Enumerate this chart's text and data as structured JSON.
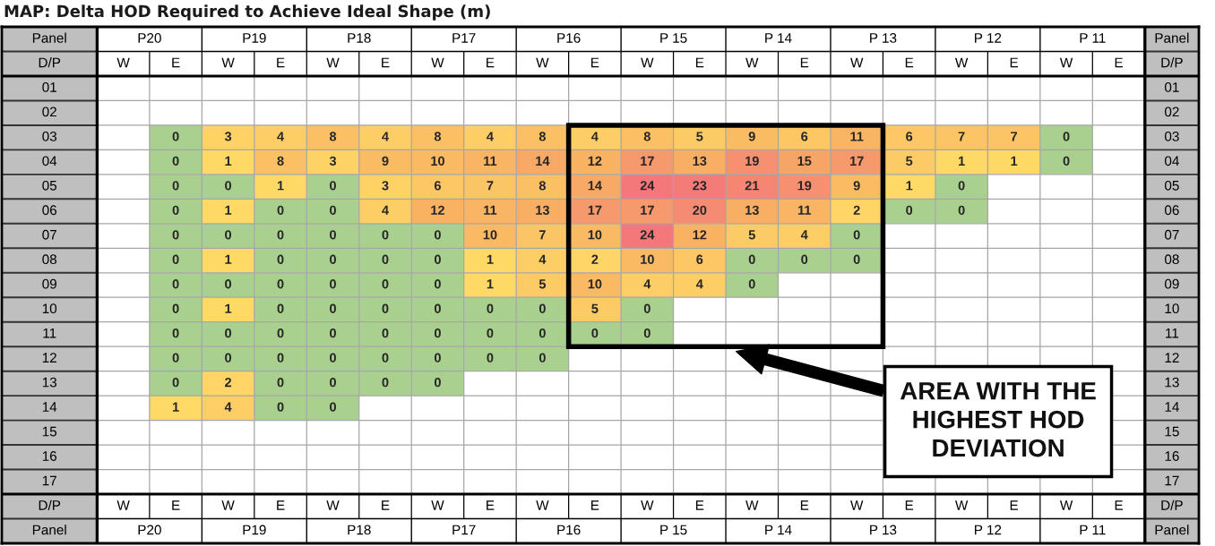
{
  "chart_data": {
    "type": "heatmap",
    "title": "MAP: Delta HOD Required to Achieve Ideal Shape (m)",
    "categories": [
      "W",
      "E",
      "W",
      "E",
      "W",
      "E",
      "W",
      "E",
      "W",
      "E",
      "W",
      "E",
      "W",
      "E",
      "W",
      "E",
      "W",
      "E",
      "W",
      "E"
    ],
    "y_categories": [
      "01",
      "02",
      "03",
      "04",
      "05",
      "06",
      "07",
      "08",
      "09",
      "10",
      "11",
      "12",
      "13",
      "14",
      "15",
      "16",
      "17"
    ],
    "y2_categories": [
      "01",
      "02",
      "03",
      "04",
      "05",
      "06",
      "07",
      "08",
      "09",
      "10",
      "11",
      "12",
      "13",
      "14",
      "15",
      "16",
      "17"
    ],
    "cells": [
      [
        null,
        null,
        null,
        null,
        null,
        null,
        null,
        null,
        null,
        null,
        null,
        null,
        null,
        null,
        null,
        null,
        null,
        null,
        null,
        null
      ],
      [
        null,
        null,
        null,
        null,
        null,
        null,
        null,
        null,
        null,
        null,
        null,
        null,
        null,
        null,
        null,
        null,
        null,
        null,
        null,
        null
      ],
      [
        null,
        0,
        3,
        4,
        8,
        4,
        8,
        4,
        8,
        4,
        8,
        5,
        9,
        6,
        11,
        6,
        7,
        7,
        0,
        null
      ],
      [
        null,
        0,
        1,
        8,
        3,
        9,
        10,
        11,
        14,
        12,
        17,
        13,
        19,
        15,
        17,
        5,
        1,
        1,
        0,
        null
      ],
      [
        null,
        0,
        0,
        1,
        0,
        3,
        6,
        7,
        8,
        14,
        24,
        23,
        21,
        19,
        9,
        1,
        0,
        null,
        null,
        null
      ],
      [
        null,
        0,
        1,
        0,
        0,
        4,
        12,
        11,
        13,
        17,
        17,
        20,
        13,
        11,
        2,
        0,
        0,
        null,
        null,
        null
      ],
      [
        null,
        0,
        0,
        0,
        0,
        0,
        0,
        10,
        7,
        10,
        24,
        12,
        5,
        4,
        0,
        null,
        null,
        null,
        null,
        null
      ],
      [
        null,
        0,
        1,
        0,
        0,
        0,
        0,
        1,
        4,
        2,
        10,
        6,
        0,
        0,
        0,
        null,
        null,
        null,
        null,
        null
      ],
      [
        null,
        0,
        0,
        0,
        0,
        0,
        0,
        1,
        5,
        10,
        4,
        4,
        0,
        null,
        null,
        null,
        null,
        null,
        null,
        null
      ],
      [
        null,
        0,
        1,
        0,
        0,
        0,
        0,
        0,
        0,
        5,
        0,
        null,
        null,
        null,
        null,
        null,
        null,
        null,
        null,
        null
      ],
      [
        null,
        0,
        0,
        0,
        0,
        0,
        0,
        0,
        0,
        0,
        0,
        null,
        null,
        null,
        null,
        null,
        null,
        null,
        null,
        null
      ],
      [
        null,
        0,
        0,
        0,
        0,
        0,
        0,
        0,
        0,
        null,
        null,
        null,
        null,
        null,
        null,
        null,
        null,
        null,
        null,
        null
      ],
      [
        null,
        0,
        2,
        0,
        0,
        0,
        0,
        null,
        null,
        null,
        null,
        null,
        null,
        null,
        null,
        null,
        null,
        null,
        null,
        null
      ],
      [
        null,
        1,
        4,
        0,
        0,
        null,
        null,
        null,
        null,
        null,
        null,
        null,
        null,
        null,
        null,
        null,
        null,
        null,
        null,
        null
      ],
      [
        null,
        null,
        null,
        null,
        null,
        null,
        null,
        null,
        null,
        null,
        null,
        null,
        null,
        null,
        null,
        null,
        null,
        null,
        null,
        null
      ],
      [
        null,
        null,
        null,
        null,
        null,
        null,
        null,
        null,
        null,
        null,
        null,
        null,
        null,
        null,
        null,
        null,
        null,
        null,
        null,
        null
      ],
      [
        null,
        null,
        null,
        null,
        null,
        null,
        null,
        null,
        null,
        null,
        null,
        null,
        null,
        null,
        null,
        null,
        null,
        null,
        null,
        null
      ]
    ],
    "data_labels": true,
    "annotations": [
      "Panel",
      "D/P",
      "P20",
      "P19",
      "P18",
      "P17",
      "P16",
      "P 15",
      "P 14",
      "P 13",
      "P 12",
      "P 11",
      "AREA WITH THE\nHIGHEST HOD\nDEVIATION"
    ]
  }
}
